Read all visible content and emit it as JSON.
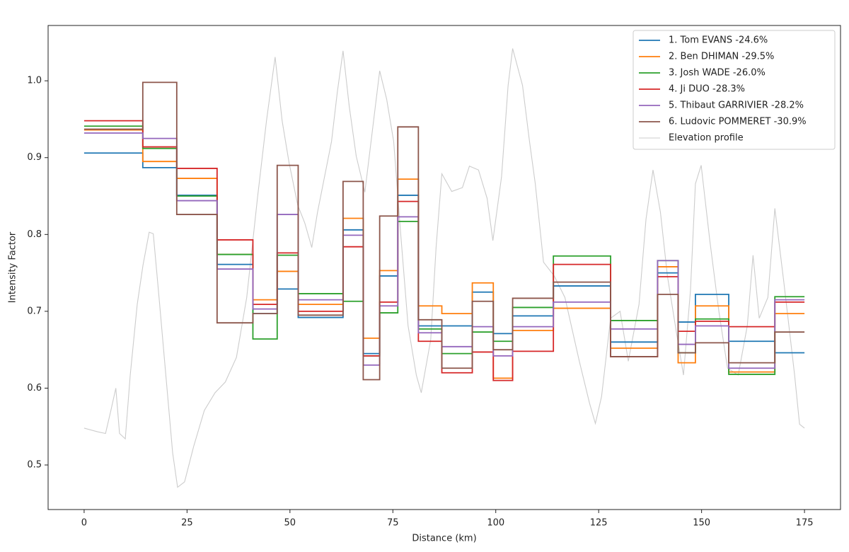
{
  "chart_data": {
    "type": "line",
    "drawstyle": "steps-post",
    "xlabel": "Distance (km)",
    "ylabel": "Intensity Factor",
    "xlim": [
      -8.75,
      183.75
    ],
    "ylim": [
      0.442,
      1.072
    ],
    "xticks": [
      0,
      25,
      50,
      75,
      100,
      125,
      150,
      175
    ],
    "yticks": [
      0.5,
      0.6,
      0.7,
      0.8,
      0.9,
      {
        "value": 1,
        "label": "1.0"
      }
    ],
    "legend": "upper right",
    "x": [
      0,
      14.25,
      22.5,
      32.3,
      41.0,
      46.9,
      52.0,
      62.9,
      67.8,
      71.8,
      76.2,
      81.2,
      86.9,
      94.3,
      99.4,
      104.1,
      114.0,
      127.9,
      139.3,
      144.3,
      148.5,
      156.6,
      167.8,
      175
    ],
    "series": [
      {
        "name": "1. Tom EVANS -24.6%",
        "color": "#1f77b4",
        "values": [
          0.906,
          0.887,
          0.851,
          0.761,
          0.697,
          0.729,
          0.692,
          0.806,
          0.645,
          0.746,
          0.851,
          0.681,
          0.681,
          0.725,
          0.671,
          0.694,
          0.733,
          0.66,
          0.75,
          0.686,
          0.722,
          0.661,
          0.646,
          0.646
        ]
      },
      {
        "name": "2. Ben DHIMAN -29.5%",
        "color": "#ff7f0e",
        "values": [
          0.936,
          0.895,
          0.873,
          0.774,
          0.715,
          0.752,
          0.709,
          0.821,
          0.665,
          0.753,
          0.872,
          0.707,
          0.697,
          0.737,
          0.613,
          0.675,
          0.704,
          0.652,
          0.758,
          0.633,
          0.707,
          0.621,
          0.697,
          0.697
        ]
      },
      {
        "name": "3. Josh WADE -26.0%",
        "color": "#2ca02c",
        "values": [
          0.941,
          0.912,
          0.85,
          0.774,
          0.664,
          0.773,
          0.723,
          0.713,
          0.642,
          0.698,
          0.817,
          0.677,
          0.645,
          0.673,
          0.661,
          0.705,
          0.772,
          0.688,
          0.766,
          0.646,
          0.69,
          0.618,
          0.719,
          0.719
        ]
      },
      {
        "name": "4. Ji DUO -28.3%",
        "color": "#d62728",
        "values": [
          0.948,
          0.914,
          0.886,
          0.793,
          0.709,
          0.776,
          0.7,
          0.784,
          0.642,
          0.712,
          0.843,
          0.661,
          0.62,
          0.647,
          0.61,
          0.648,
          0.761,
          0.641,
          0.745,
          0.674,
          0.687,
          0.68,
          0.712,
          0.712
        ]
      },
      {
        "name": "5. Thibaut GARRIVIER -28.2%",
        "color": "#9467bd",
        "values": [
          0.932,
          0.925,
          0.844,
          0.755,
          0.703,
          0.826,
          0.715,
          0.799,
          0.63,
          0.707,
          0.823,
          0.672,
          0.654,
          0.68,
          0.642,
          0.68,
          0.712,
          0.677,
          0.766,
          0.657,
          0.681,
          0.626,
          0.715,
          0.715
        ]
      },
      {
        "name": "6. Ludovic POMMERET -30.9%",
        "color": "#8c564b",
        "values": [
          0.937,
          0.998,
          0.826,
          0.685,
          0.697,
          0.89,
          0.695,
          0.869,
          0.611,
          0.824,
          0.94,
          0.689,
          0.626,
          0.713,
          0.65,
          0.717,
          0.738,
          0.641,
          0.722,
          0.646,
          0.659,
          0.633,
          0.673,
          0.673
        ]
      },
      {
        "name": "Elevation profile",
        "color": "#cccccc",
        "drawstyle": "default",
        "x": [
          0,
          3.4,
          5.2,
          6.5,
          7.7,
          8.6,
          10,
          11.2,
          12.9,
          14.3,
          15.8,
          16.8,
          18.2,
          19.7,
          21.5,
          22.7,
          24.4,
          26.6,
          29.2,
          31.8,
          34.3,
          37,
          39.5,
          42.1,
          44.3,
          46.4,
          48.1,
          49.8,
          51.9,
          53.6,
          55.3,
          56.7,
          58.4,
          60.1,
          61.5,
          62.9,
          64.4,
          66.1,
          68.2,
          69.5,
          71.8,
          73.5,
          75.2,
          76.9,
          78.7,
          80.7,
          81.9,
          84.2,
          85.5,
          86.9,
          89.3,
          91.9,
          93.6,
          95.8,
          97.9,
          99.3,
          101.4,
          103,
          104.1,
          106.5,
          108.2,
          109.6,
          111.6,
          114.2,
          116.8,
          120.3,
          122.8,
          124.2,
          125.7,
          127.9,
          130.2,
          132.2,
          134.8,
          136.5,
          138.2,
          140,
          141.7,
          143.9,
          145.6,
          147.3,
          148.5,
          149.9,
          152,
          154.2,
          156.3,
          158.9,
          161.1,
          162.5,
          164,
          166.1,
          167.8,
          170,
          172.6,
          173.8,
          175
        ],
        "values": [
          0.548,
          0.543,
          0.541,
          0.571,
          0.6,
          0.541,
          0.534,
          0.617,
          0.709,
          0.76,
          0.803,
          0.801,
          0.718,
          0.626,
          0.516,
          0.471,
          0.478,
          0.524,
          0.571,
          0.594,
          0.608,
          0.64,
          0.718,
          0.847,
          0.948,
          1.031,
          0.948,
          0.893,
          0.838,
          0.815,
          0.783,
          0.829,
          0.875,
          0.921,
          0.985,
          1.039,
          0.967,
          0.902,
          0.855,
          0.912,
          1.013,
          0.976,
          0.921,
          0.801,
          0.681,
          0.617,
          0.594,
          0.663,
          0.783,
          0.879,
          0.856,
          0.861,
          0.889,
          0.884,
          0.847,
          0.792,
          0.875,
          0.994,
          1.042,
          0.994,
          0.921,
          0.866,
          0.764,
          0.746,
          0.718,
          0.635,
          0.58,
          0.554,
          0.589,
          0.691,
          0.7,
          0.635,
          0.709,
          0.82,
          0.884,
          0.829,
          0.746,
          0.672,
          0.617,
          0.727,
          0.866,
          0.89,
          0.792,
          0.7,
          0.626,
          0.617,
          0.681,
          0.773,
          0.691,
          0.718,
          0.834,
          0.737,
          0.617,
          0.553,
          0.548
        ]
      }
    ]
  }
}
